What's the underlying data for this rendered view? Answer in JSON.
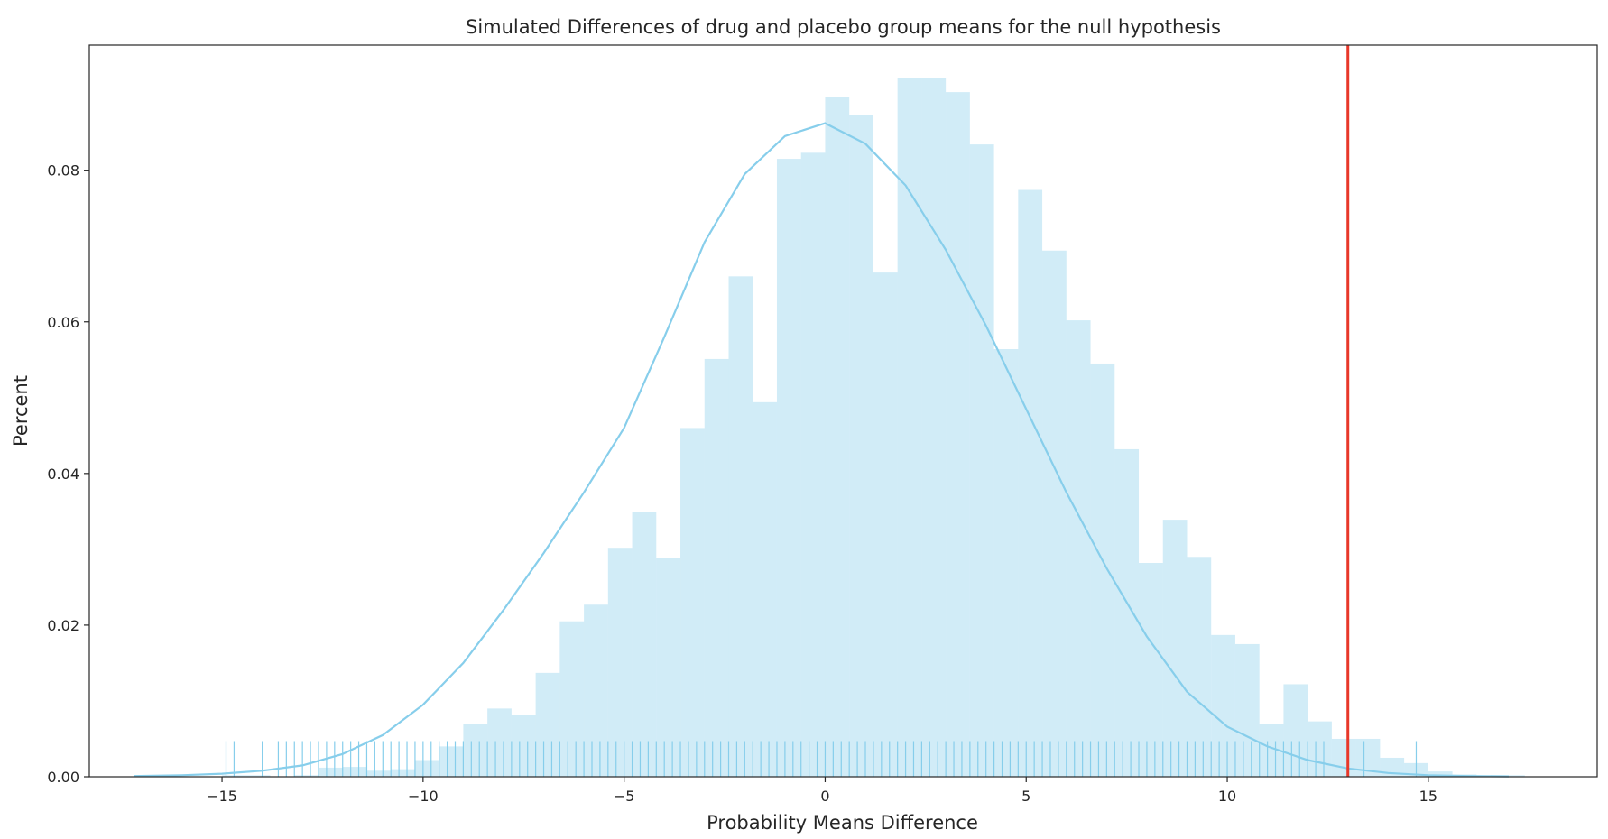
{
  "chart_data": {
    "type": "bar",
    "title": "Simulated Differences of drug and placebo group means for the null hypothesis",
    "xlabel": "Probability Means Difference",
    "ylabel": "Percent",
    "xlim": [
      -18.3,
      19.2
    ],
    "ylim": [
      0,
      0.0965
    ],
    "xticks": [
      -15,
      -10,
      -5,
      0,
      5,
      10,
      15
    ],
    "xtick_labels": [
      "−15",
      "−10",
      "−5",
      "0",
      "5",
      "10",
      "15"
    ],
    "yticks": [
      0,
      0.02,
      0.04,
      0.06,
      0.08
    ],
    "ytick_labels": [
      "0.00",
      "0.02",
      "0.04",
      "0.06",
      "0.08"
    ],
    "grid": false,
    "histogram": {
      "bin_width": 0.6,
      "bin_edges_start": -15.0,
      "values": [
        0.0002,
        0.0002,
        0.0,
        0.0002,
        0.0012,
        0.0013,
        0.0008,
        0.001,
        0.0022,
        0.004,
        0.007,
        0.009,
        0.0082,
        0.0137,
        0.0205,
        0.0227,
        0.0302,
        0.0349,
        0.0289,
        0.046,
        0.0551,
        0.066,
        0.0494,
        0.0815,
        0.0823,
        0.0896,
        0.0873,
        0.0665,
        0.0921,
        0.0921,
        0.0903,
        0.0834,
        0.0564,
        0.0774,
        0.0694,
        0.0602,
        0.0545,
        0.0432,
        0.0282,
        0.0339,
        0.029,
        0.0187,
        0.0175,
        0.007,
        0.0122,
        0.0073,
        0.005,
        0.005,
        0.0025,
        0.0018,
        0.0007,
        0.0003,
        0.0002,
        0.0002
      ],
      "color": "#87ceeb"
    },
    "kde": {
      "x": [
        -17.2,
        -16,
        -15,
        -14,
        -13,
        -12,
        -11,
        -10,
        -9,
        -8,
        -7,
        -6,
        -5,
        -4,
        -3,
        -2,
        -1,
        0,
        1,
        2,
        3,
        4,
        5,
        6,
        7,
        8,
        9,
        10,
        11,
        12,
        13,
        14,
        15,
        16,
        17
      ],
      "y": [
        0.0001,
        0.0002,
        0.0004,
        0.0008,
        0.0015,
        0.003,
        0.0055,
        0.0095,
        0.015,
        0.022,
        0.0295,
        0.0375,
        0.046,
        0.058,
        0.0705,
        0.0795,
        0.0845,
        0.0862,
        0.0835,
        0.078,
        0.0695,
        0.0595,
        0.0485,
        0.0375,
        0.0275,
        0.0185,
        0.0112,
        0.0066,
        0.004,
        0.0022,
        0.0011,
        0.0005,
        0.0002,
        0.0001,
        5e-05
      ],
      "color": "#87ceeb"
    },
    "rug": {
      "x": [
        -14.9,
        -14.7,
        -14.0,
        -13.6,
        -13.4,
        -13.2,
        -13.0,
        -12.8,
        -12.6,
        -12.4,
        -12.2,
        -12.0,
        -11.8,
        -11.6,
        -11.4,
        -11.2,
        -11.0,
        -10.8,
        -10.6,
        -10.4,
        -10.2,
        -10.0,
        -9.8,
        -9.6,
        -9.4,
        -9.2,
        -9.0,
        -8.8,
        -8.6,
        -8.4,
        -8.2,
        -8.0,
        -7.8,
        -7.6,
        -7.4,
        -7.2,
        -7.0,
        -6.8,
        -6.6,
        -6.4,
        -6.2,
        -6.0,
        -5.8,
        -5.6,
        -5.4,
        -5.2,
        -5.0,
        -4.8,
        -4.6,
        -4.4,
        -4.2,
        -4.0,
        -3.8,
        -3.6,
        -3.4,
        -3.2,
        -3.0,
        -2.8,
        -2.6,
        -2.4,
        -2.2,
        -2.0,
        -1.8,
        -1.6,
        -1.4,
        -1.2,
        -1.0,
        -0.8,
        -0.6,
        -0.4,
        -0.2,
        0.0,
        0.2,
        0.4,
        0.6,
        0.8,
        1.0,
        1.2,
        1.4,
        1.6,
        1.8,
        2.0,
        2.2,
        2.4,
        2.6,
        2.8,
        3.0,
        3.2,
        3.4,
        3.6,
        3.8,
        4.0,
        4.2,
        4.4,
        4.6,
        4.8,
        5.0,
        5.2,
        5.4,
        5.6,
        5.8,
        6.0,
        6.2,
        6.4,
        6.6,
        6.8,
        7.0,
        7.2,
        7.4,
        7.6,
        7.8,
        8.0,
        8.2,
        8.4,
        8.6,
        8.8,
        9.0,
        9.2,
        9.4,
        9.6,
        9.8,
        10.0,
        10.2,
        10.4,
        10.6,
        10.8,
        11.0,
        11.2,
        11.4,
        11.6,
        11.8,
        12.0,
        12.2,
        12.4,
        13.4,
        14.7
      ],
      "height": 0.0047,
      "color": "#87ceeb"
    },
    "vline": {
      "x": 13.0,
      "color": "#e8382a"
    }
  }
}
